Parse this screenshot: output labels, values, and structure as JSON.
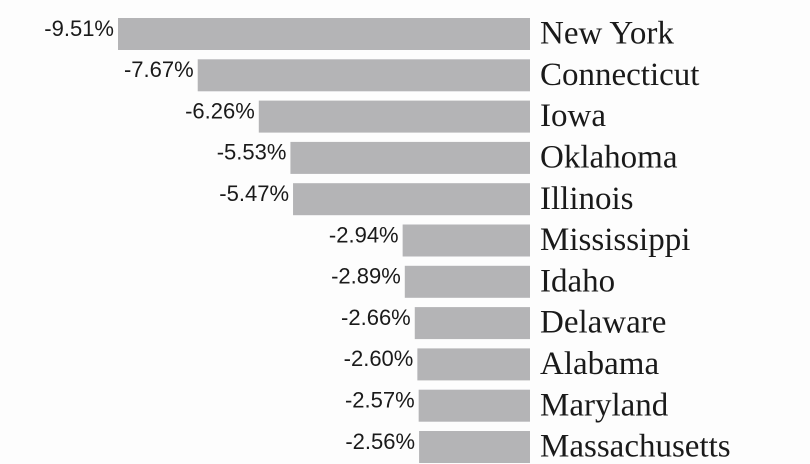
{
  "chart_data": {
    "type": "bar",
    "orientation": "horizontal",
    "categories": [
      "New York",
      "Connecticut",
      "Iowa",
      "Oklahoma",
      "Illinois",
      "Mississippi",
      "Idaho",
      "Delaware",
      "Alabama",
      "Maryland",
      "Massachusetts"
    ],
    "values": [
      -9.51,
      -7.67,
      -6.26,
      -5.53,
      -5.47,
      -2.94,
      -2.89,
      -2.66,
      -2.6,
      -2.57,
      -2.56
    ],
    "value_labels": [
      "-9.51%",
      "-7.67%",
      "-6.26%",
      "-5.53%",
      "-5.47%",
      "-2.94%",
      "-2.89%",
      "-2.66%",
      "-2.60%",
      "-2.57%",
      "-2.56%"
    ],
    "color": "#b4b4b6"
  }
}
